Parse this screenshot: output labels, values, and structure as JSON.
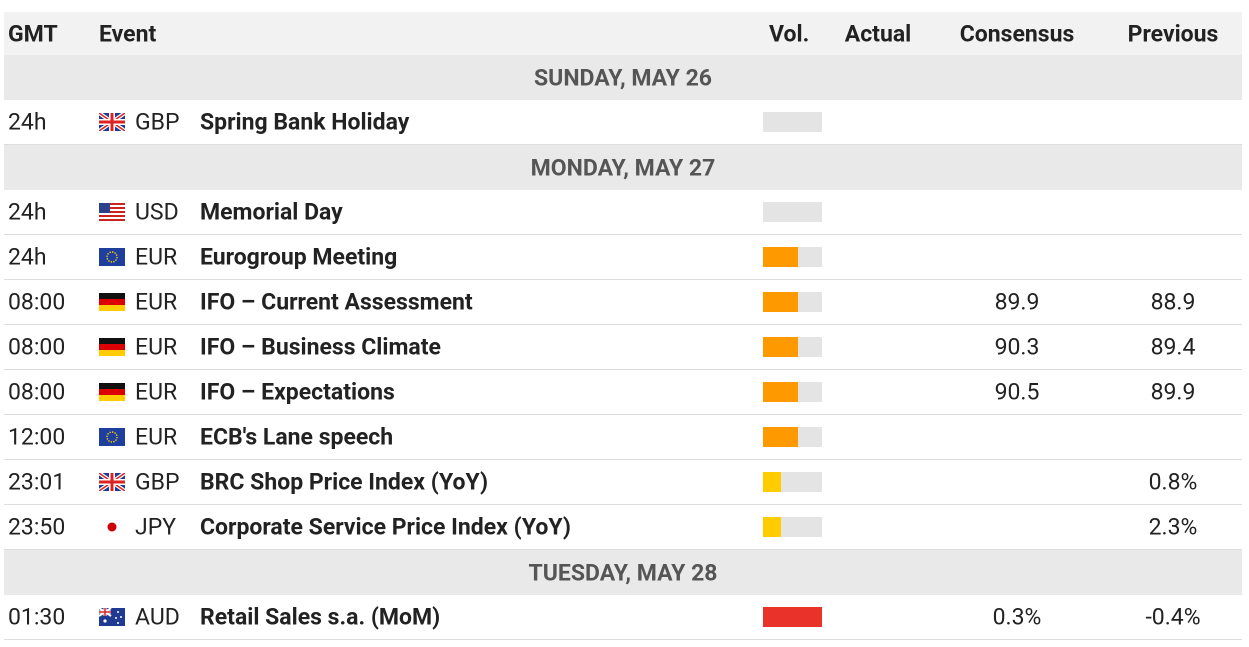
{
  "header": {
    "gmt": "GMT",
    "event": "Event",
    "vol": "Vol.",
    "actual": "Actual",
    "consensus": "Consensus",
    "previous": "Previous"
  },
  "groups": [
    {
      "day": "SUNDAY, MAY 26",
      "rows": [
        {
          "time": "24h",
          "currency": "GBP",
          "event": "Spring Bank Holiday"
        }
      ]
    },
    {
      "day": "MONDAY, MAY 27",
      "rows": [
        {
          "time": "24h",
          "currency": "USD",
          "event": "Memorial Day"
        },
        {
          "time": "24h",
          "currency": "EUR",
          "event": "Eurogroup Meeting"
        },
        {
          "time": "08:00",
          "currency": "EUR",
          "event": "IFO – Current Assessment",
          "consensus": "89.9",
          "previous": "88.9"
        },
        {
          "time": "08:00",
          "currency": "EUR",
          "event": "IFO – Business Climate",
          "consensus": "90.3",
          "previous": "89.4"
        },
        {
          "time": "08:00",
          "currency": "EUR",
          "event": "IFO – Expectations",
          "consensus": "90.5",
          "previous": "89.9"
        },
        {
          "time": "12:00",
          "currency": "EUR",
          "event": "ECB's Lane speech"
        },
        {
          "time": "23:01",
          "currency": "GBP",
          "event": "BRC Shop Price Index (YoY)",
          "previous": "0.8%"
        },
        {
          "time": "23:50",
          "currency": "JPY",
          "event": "Corporate Service Price Index (YoY)",
          "previous": "2.3%"
        }
      ]
    },
    {
      "day": "TUESDAY, MAY 28",
      "rows": [
        {
          "time": "01:30",
          "currency": "AUD",
          "event": "Retail Sales s.a. (MoM)",
          "consensus": "0.3%",
          "previous": "-0.4%"
        }
      ]
    }
  ]
}
